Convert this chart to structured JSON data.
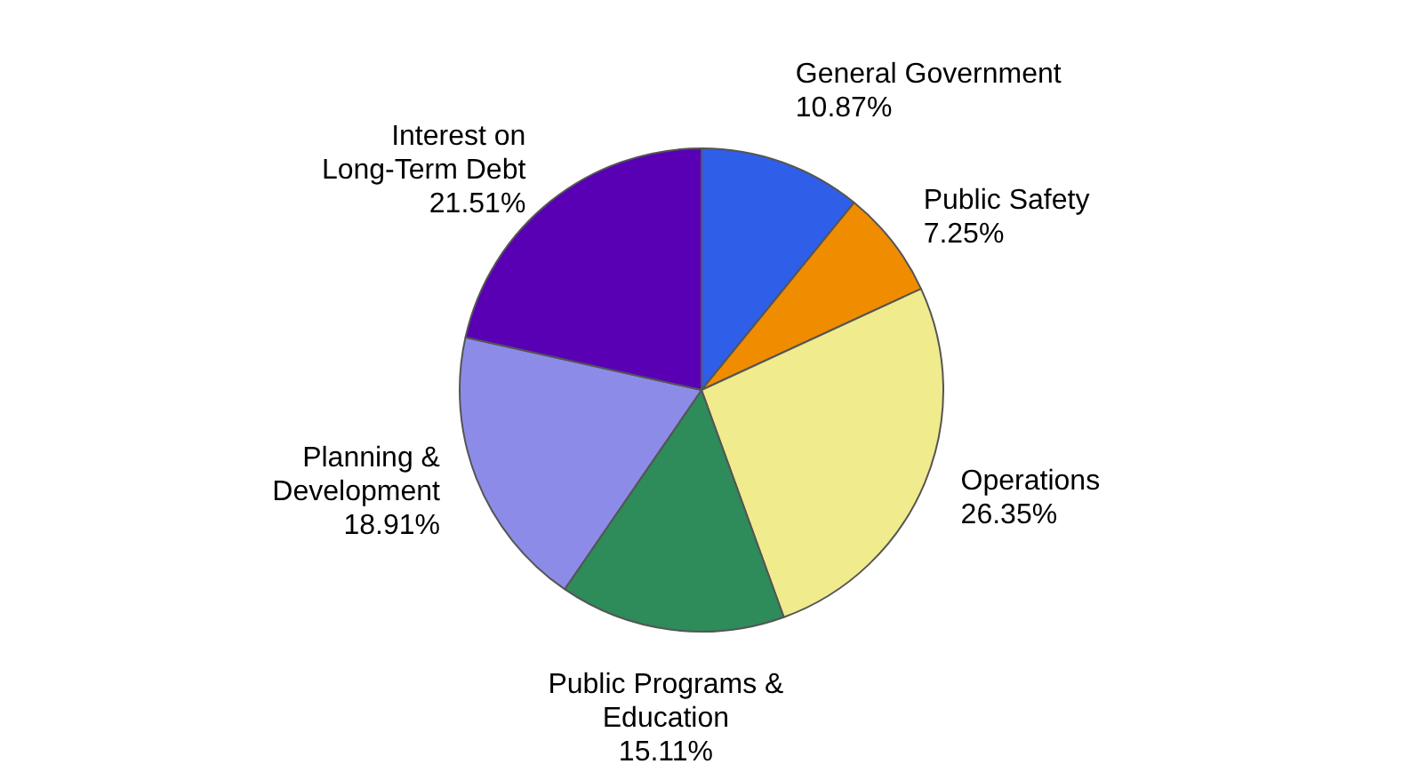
{
  "chart_data": {
    "type": "pie",
    "categories": [
      "General Government",
      "Public Safety",
      "Operations",
      "Public Programs & Education",
      "Planning & Development",
      "Interest on Long-Term Debt"
    ],
    "values": [
      10.87,
      7.25,
      26.35,
      15.11,
      18.91,
      21.51
    ],
    "colors": [
      "#2f5fe8",
      "#f08c00",
      "#f0eb8c",
      "#2e8b5a",
      "#8c8ce8",
      "#5a00b4"
    ],
    "value_labels": [
      "10.87%",
      "7.25%",
      "26.35%",
      "15.11%",
      "18.91%",
      "21.51%"
    ],
    "legend": false
  }
}
